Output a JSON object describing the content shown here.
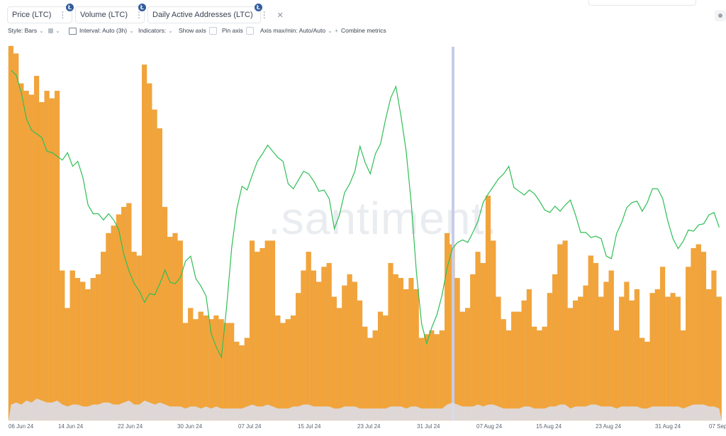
{
  "metrics": [
    {
      "label": "Price (LTC)",
      "color": "#2fbf55"
    },
    {
      "label": "Volume (LTC)",
      "color": "#c8cad8"
    },
    {
      "label": "Daily Active Addresses (LTC)",
      "color": "#f2a43a"
    }
  ],
  "coin_badge": "Ł",
  "toolbar": {
    "style": "Style: Bars",
    "interval": "Interval: Auto (3h)",
    "indicators": "Indicators:",
    "show_axis": "Show axis",
    "pin_axis": "Pin axis",
    "axis_minmax": "Axis max/min: Auto/Auto",
    "combine": "Combine metrics"
  },
  "watermark": ".santiment.",
  "chart_data": {
    "type": "bar",
    "x_ticks": [
      "06 Jun 24",
      "14 Jun 24",
      "22 Jun 24",
      "30 Jun 24",
      "07 Jul 24",
      "15 Jul 24",
      "23 Jul 24",
      "31 Jul 24",
      "07 Aug 24",
      "15 Aug 24",
      "23 Aug 24",
      "31 Aug 24",
      "07 Sep"
    ],
    "series": [
      {
        "name": "Daily Active Addresses (LTC)",
        "type": "bar",
        "color": "#f2a43a",
        "values": [
          100,
          98,
          90,
          88,
          87,
          92,
          85,
          88,
          86,
          88,
          40,
          30,
          40,
          38,
          37,
          35,
          38,
          39,
          45,
          50,
          52,
          55,
          57,
          58,
          45,
          44,
          95,
          90,
          83,
          78,
          57,
          49,
          50,
          48,
          26,
          30,
          27,
          29,
          28,
          27,
          28,
          27,
          26,
          26,
          21,
          20,
          22,
          48,
          45,
          46,
          48,
          48,
          28,
          26,
          27,
          28,
          34,
          40,
          45,
          40,
          37,
          41,
          42,
          33,
          30,
          36,
          39,
          37,
          32,
          25,
          22,
          24,
          29,
          28,
          42,
          39,
          38,
          35,
          38,
          35,
          22,
          23,
          24,
          23,
          24,
          50,
          47,
          38,
          29,
          30,
          39,
          45,
          42,
          60,
          48,
          33,
          27,
          24,
          29,
          29,
          32,
          35,
          25,
          24,
          25,
          34,
          39,
          47,
          48,
          30,
          32,
          33,
          36,
          44,
          42,
          33,
          37,
          40,
          24,
          33,
          37,
          32,
          35,
          22,
          21,
          34,
          35,
          41,
          33,
          34,
          33,
          24,
          41,
          46,
          47,
          45,
          35,
          40,
          33
        ]
      },
      {
        "name": "Price (LTC)",
        "type": "line",
        "color": "#2fbf55",
        "values": [
          74.2,
          73.8,
          72.4,
          70.3,
          69.4,
          69.1,
          68.8,
          67.7,
          67.6,
          67.3,
          67.0,
          67.6,
          66.5,
          66.9,
          65.6,
          63.4,
          62.7,
          62.7,
          62.2,
          62.7,
          62.2,
          61.4,
          59.4,
          58.1,
          57.1,
          56.5,
          55.6,
          56.3,
          56.2,
          57.1,
          58.2,
          57.2,
          57.1,
          57.6,
          58.9,
          59.3,
          57.5,
          56.9,
          56.1,
          53.1,
          52.0,
          51.2,
          55.2,
          60.0,
          63.1,
          64.9,
          64.6,
          65.8,
          66.9,
          67.5,
          68.2,
          67.7,
          67.2,
          66.9,
          65.1,
          64.7,
          65.4,
          66.1,
          65.9,
          65.3,
          64.5,
          64.6,
          63.9,
          61.5,
          62.6,
          64.4,
          65.1,
          66.1,
          68.1,
          66.8,
          65.9,
          67.5,
          68.3,
          70.3,
          72.0,
          72.9,
          70.5,
          67.7,
          63.5,
          58.0,
          53.9,
          52.3,
          53.6,
          54.6,
          56.2,
          58.4,
          59.9,
          60.4,
          60.6,
          60.4,
          61.2,
          62.1,
          63.6,
          64.3,
          64.9,
          65.5,
          65.9,
          66.5,
          64.8,
          64.5,
          64.2,
          64.6,
          64.3,
          63.7,
          63.0,
          62.8,
          63.3,
          62.9,
          63.4,
          63.8,
          62.6,
          61.2,
          61.2,
          60.8,
          60.9,
          60.7,
          59.3,
          59.1,
          61.1,
          62.0,
          63.2,
          63.6,
          63.7,
          62.9,
          63.6,
          64.7,
          64.7,
          63.9,
          62.1,
          60.7,
          59.9,
          60.5,
          61.4,
          61.3,
          61.8,
          61.9,
          62.6,
          62.8,
          61.6
        ]
      },
      {
        "name": "Volume (LTC)",
        "type": "area",
        "color": "#dcdde8",
        "values": [
          8,
          9,
          8,
          10,
          9,
          11,
          10,
          9,
          9,
          10,
          8,
          7,
          8,
          8,
          7,
          7,
          8,
          8,
          9,
          9,
          8,
          8,
          9,
          10,
          8,
          8,
          10,
          9,
          8,
          9,
          8,
          7,
          7,
          7,
          6,
          7,
          7,
          6,
          7,
          6,
          7,
          6,
          6,
          6,
          6,
          6,
          7,
          8,
          7,
          7,
          8,
          7,
          6,
          6,
          6,
          7,
          7,
          8,
          8,
          7,
          7,
          7,
          7,
          6,
          6,
          7,
          7,
          7,
          6,
          6,
          6,
          6,
          6,
          6,
          7,
          7,
          7,
          6,
          7,
          7,
          6,
          6,
          6,
          6,
          6,
          8,
          9,
          8,
          7,
          7,
          7,
          8,
          7,
          8,
          8,
          7,
          6,
          6,
          6,
          6,
          7,
          7,
          6,
          6,
          6,
          7,
          7,
          8,
          8,
          6,
          7,
          7,
          7,
          8,
          8,
          7,
          7,
          7,
          6,
          7,
          7,
          7,
          7,
          6,
          6,
          7,
          7,
          7,
          7,
          7,
          7,
          6,
          7,
          8,
          8,
          8,
          7,
          7,
          6
        ]
      }
    ]
  }
}
